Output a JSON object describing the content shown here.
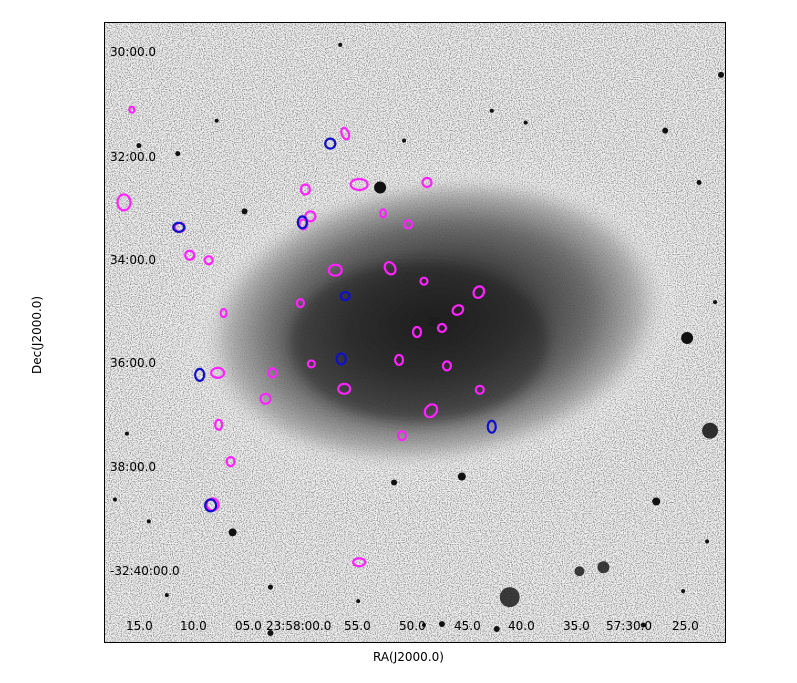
{
  "axes": {
    "x_title": "RA(J2000.0)",
    "y_title": "Dec(J2000.0)",
    "x_ticks": [
      "15.0",
      "10.0",
      "05.0",
      "23:58:00.0",
      "55.0",
      "50.0",
      "45.0",
      "40.0",
      "35.0",
      "57:30.0",
      "25.0"
    ],
    "y_ticks": [
      "30:00.0",
      "32:00.0",
      "34:00.0",
      "36:00.0",
      "38:00.0",
      "-32:40:00.0"
    ]
  },
  "colors": {
    "background": "#ffffff",
    "galaxy": "#2a2a2a",
    "region_magenta": "#ff22ff",
    "region_blue": "#1010cc"
  },
  "regions": {
    "magenta_count": 42,
    "blue_count": 9
  }
}
